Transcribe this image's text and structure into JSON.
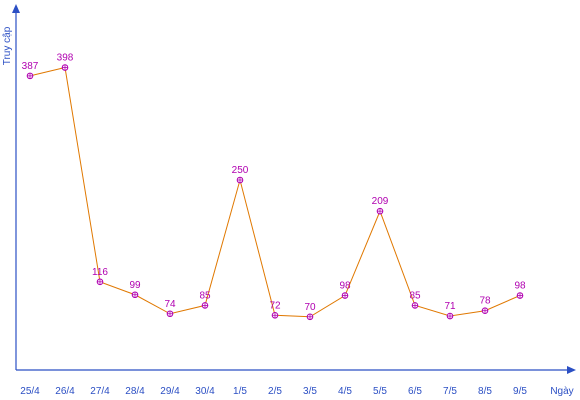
{
  "chart_data": {
    "type": "line",
    "title": "",
    "xlabel": "Ngày",
    "ylabel": "Truy cập",
    "categories": [
      "25/4",
      "26/4",
      "27/4",
      "28/4",
      "29/4",
      "30/4",
      "1/5",
      "2/5",
      "3/5",
      "4/5",
      "5/5",
      "6/5",
      "7/5",
      "8/5",
      "9/5"
    ],
    "series": [
      {
        "values": [
          387,
          398,
          116,
          99,
          74,
          85,
          250,
          72,
          70,
          98,
          209,
          85,
          71,
          78,
          98
        ]
      }
    ],
    "ylim": [
      0,
      420
    ],
    "grid": false,
    "legend": "none",
    "colors": {
      "line": "#e07800",
      "marker": "#b000b0",
      "data_label": "#b000b0",
      "axis": "#2b4fc4",
      "tick_label": "#2b4fc4"
    }
  }
}
